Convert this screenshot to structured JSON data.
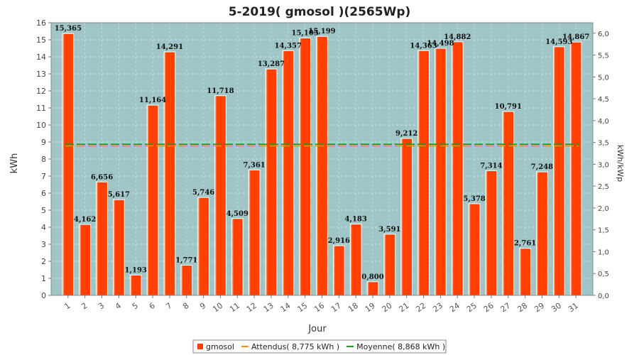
{
  "chart_data": {
    "type": "bar",
    "title": "5-2019( gmosol )(2565Wp)",
    "xlabel": "Jour",
    "ylabel": "kWh",
    "ylabel_right": "kWh/kWp",
    "categories": [
      "1",
      "2",
      "3",
      "4",
      "5",
      "6",
      "7",
      "8",
      "9",
      "10",
      "11",
      "12",
      "13",
      "14",
      "15",
      "16",
      "17",
      "18",
      "19",
      "20",
      "21",
      "22",
      "23",
      "24",
      "25",
      "26",
      "27",
      "28",
      "29",
      "30",
      "31"
    ],
    "series": [
      {
        "name": "gmosol",
        "color": "#ff4000",
        "values": [
          15.365,
          4.162,
          6.656,
          5.617,
          1.193,
          11.164,
          14.291,
          1.771,
          5.746,
          11.718,
          4.509,
          7.361,
          13.287,
          14.357,
          15.105,
          15.199,
          2.916,
          4.183,
          0.8,
          3.591,
          9.212,
          14.363,
          14.498,
          14.882,
          5.378,
          7.314,
          10.791,
          2.761,
          7.248,
          14.593,
          14.867
        ],
        "labels": [
          "15,365",
          "4,162",
          "6,656",
          "5,617",
          "1,193",
          "11,164",
          "14,291",
          "1,771",
          "5,746",
          "11,718",
          "4,509",
          "7,361",
          "13,287",
          "14,357",
          "15,105",
          "15,199",
          "2,916",
          "4,183",
          "0,800",
          "3,591",
          "9,212",
          "14,363",
          "14,498",
          "14,882",
          "5,378",
          "7,314",
          "10,791",
          "2,761",
          "7,248",
          "14,593",
          "14,867"
        ]
      }
    ],
    "lines": [
      {
        "name": "Attendus( 8,775 kWh )",
        "value": 8.775,
        "color": "#ff8c00"
      },
      {
        "name": "Moyenne( 8,868 kWh )",
        "value": 8.868,
        "color": "#1a9a1a"
      }
    ],
    "ylim": [
      0,
      16
    ],
    "yticks": [
      "0",
      "1",
      "2",
      "3",
      "4",
      "5",
      "6",
      "7",
      "8",
      "9",
      "10",
      "11",
      "12",
      "13",
      "14",
      "15",
      "16"
    ],
    "ylim_right": [
      0,
      6.24
    ],
    "yticks_right": [
      "0,0",
      "0,5",
      "1,0",
      "1,5",
      "2,0",
      "2,5",
      "3,0",
      "3,5",
      "4,0",
      "4,5",
      "5,0",
      "5,5",
      "6,0"
    ],
    "plot_background": "#9fc5c6",
    "grid": true,
    "legend_position": "bottom-center"
  }
}
